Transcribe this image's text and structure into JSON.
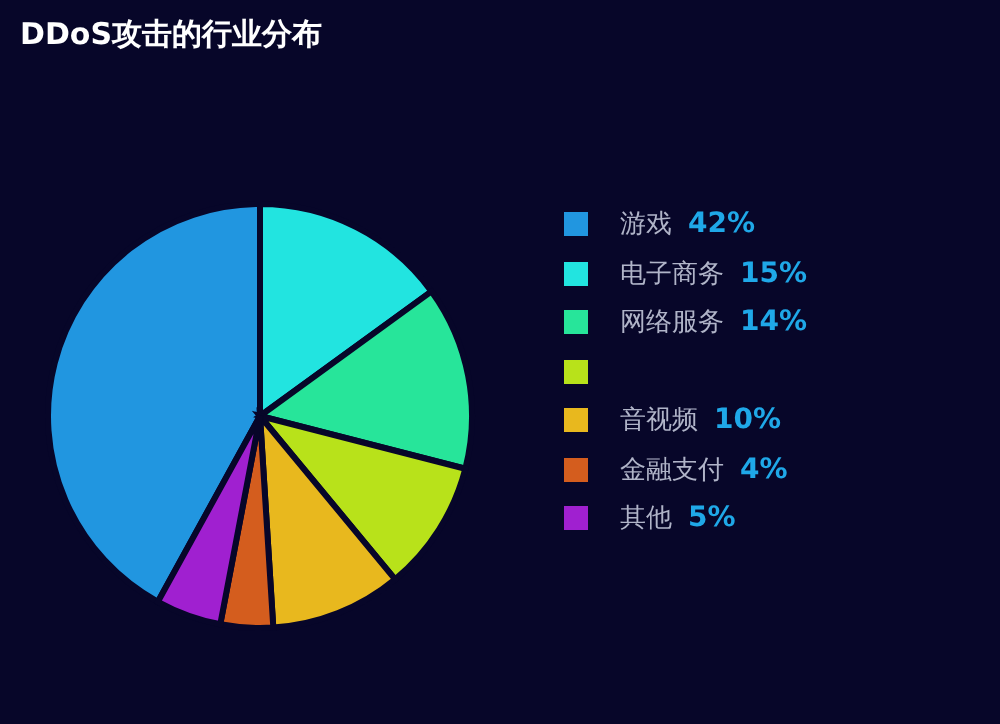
{
  "chart_data": {
    "type": "pie",
    "title": "DDoS攻击的行业分布",
    "categories": [
      "游戏",
      "电子商务",
      "网络服务",
      null,
      "音视频",
      "金融支付",
      "其他"
    ],
    "values": [
      42,
      15,
      14,
      10,
      10,
      4,
      5
    ],
    "colors": [
      "#2196e0",
      "#22e4e0",
      "#27e59a",
      "#b8e21a",
      "#e8b81e",
      "#d45d1e",
      "#a020d0"
    ],
    "value_labels": [
      "42%",
      "15%",
      "14%",
      null,
      "10%",
      "4%",
      "5%"
    ],
    "legend": "right"
  }
}
